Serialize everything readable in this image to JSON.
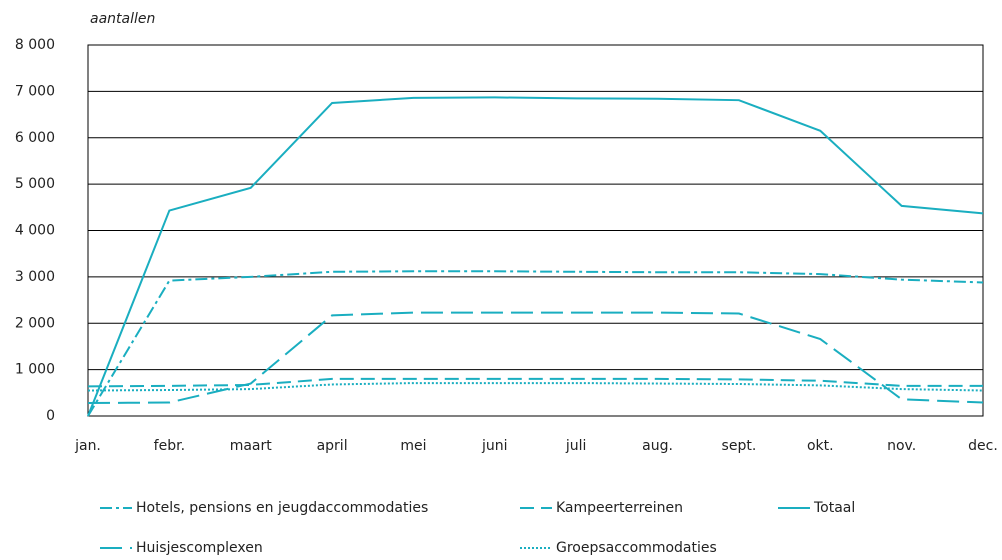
{
  "chart_data": {
    "type": "line",
    "y_label": "aantallen",
    "categories": [
      "jan.",
      "febr.",
      "maart",
      "april",
      "mei",
      "juni",
      "juli",
      "aug.",
      "sept.",
      "okt.",
      "nov.",
      "dec."
    ],
    "ylim": [
      0,
      8000
    ],
    "yticks": [
      0,
      {
        "value": 1000,
        "label": "1 000"
      },
      {
        "value": 2000,
        "label": "2 000"
      },
      {
        "value": 3000,
        "label": "3 000"
      },
      {
        "value": 4000,
        "label": "4 000"
      },
      {
        "value": 5000,
        "label": "5 000"
      },
      {
        "value": 6000,
        "label": "6 000"
      },
      {
        "value": 7000,
        "label": "7 000"
      },
      {
        "value": 8000,
        "label": "8 000"
      }
    ],
    "grid": true,
    "series": [
      {
        "name": "Hotels, pensions en jeugdaccommodaties",
        "color": "#1aaec0",
        "dash": "dashdot",
        "values": [
          0,
          2920,
          3000,
          3110,
          3120,
          3120,
          3110,
          3100,
          3100,
          3060,
          2940,
          2880
        ]
      },
      {
        "name": "Kampeerterreinen",
        "color": "#1aaec0",
        "dash": "dashed",
        "values": [
          640,
          650,
          670,
          800,
          800,
          800,
          800,
          800,
          790,
          760,
          650,
          650
        ]
      },
      {
        "name": "Totaal",
        "color": "#1aaec0",
        "dash": "solid",
        "values": [
          0,
          4430,
          4920,
          6750,
          6860,
          6870,
          6850,
          6840,
          6810,
          6150,
          4530,
          4370
        ]
      },
      {
        "name": "Huisjescomplexen",
        "color": "#1aaec0",
        "dash": "longdash",
        "values": [
          280,
          290,
          700,
          2170,
          2230,
          2230,
          2230,
          2230,
          2210,
          1660,
          360,
          290
        ]
      },
      {
        "name": "Groepsaccommodaties",
        "color": "#1aaec0",
        "dash": "dotted",
        "values": [
          550,
          560,
          580,
          680,
          710,
          710,
          710,
          700,
          690,
          660,
          580,
          550
        ]
      }
    ]
  }
}
